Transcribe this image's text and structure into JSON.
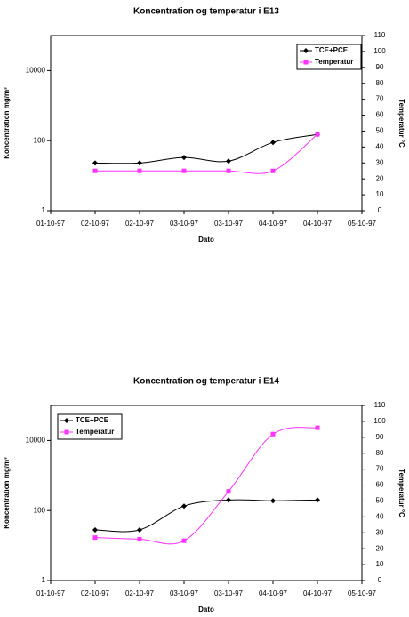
{
  "chart_data": [
    {
      "type": "line",
      "title": "Koncentration og temperatur i E13",
      "x_label": "Dato",
      "y_label": "Koncentration mg/m³",
      "y2_label": "Temperatur °C",
      "categories": [
        "01-10-97",
        "02-10-97",
        "02-10-97",
        "03-10-97",
        "03-10-97",
        "04-10-97",
        "04-10-97",
        "05-10-97"
      ],
      "series": [
        {
          "name": "TCE+PCE",
          "color": "#000000",
          "marker": "diamond",
          "values": [
            null,
            23,
            23,
            33,
            26,
            89,
            150,
            null
          ]
        },
        {
          "name": "Temperatur",
          "color": "#ff33ff",
          "marker": "square",
          "axis": "y2",
          "values": [
            null,
            25,
            25,
            25,
            25,
            25,
            48,
            null
          ]
        }
      ],
      "ylim": [
        1,
        100000
      ],
      "yticks": [
        1,
        100,
        10000
      ],
      "log_scale": true,
      "y2lim": [
        0,
        110
      ],
      "y2ticks": [
        0,
        10,
        20,
        30,
        40,
        50,
        60,
        70,
        80,
        90,
        100,
        110
      ],
      "legend": "top-right"
    },
    {
      "type": "line",
      "title": "Koncentration og temperatur i E14",
      "x_label": "Dato",
      "y_label": "Koncentration mg/m³",
      "y2_label": "Temperatur °C",
      "categories": [
        "01-10-97",
        "02-10-97",
        "02-10-97",
        "03-10-97",
        "03-10-97",
        "04-10-97",
        "04-10-97",
        "05-10-97"
      ],
      "series": [
        {
          "name": "TCE+PCE",
          "color": "#000000",
          "marker": "diamond",
          "values": [
            null,
            28,
            28,
            134,
            200,
            190,
            200,
            null
          ]
        },
        {
          "name": "Temperatur",
          "color": "#ff33ff",
          "marker": "square",
          "axis": "y2",
          "values": [
            null,
            27,
            26,
            25,
            56,
            92,
            96,
            null
          ]
        }
      ],
      "ylim": [
        1,
        100000
      ],
      "yticks": [
        1,
        100,
        10000
      ],
      "log_scale": true,
      "y2lim": [
        0,
        110
      ],
      "y2ticks": [
        0,
        10,
        20,
        30,
        40,
        50,
        60,
        70,
        80,
        90,
        100,
        110
      ],
      "legend": "top-left"
    }
  ]
}
